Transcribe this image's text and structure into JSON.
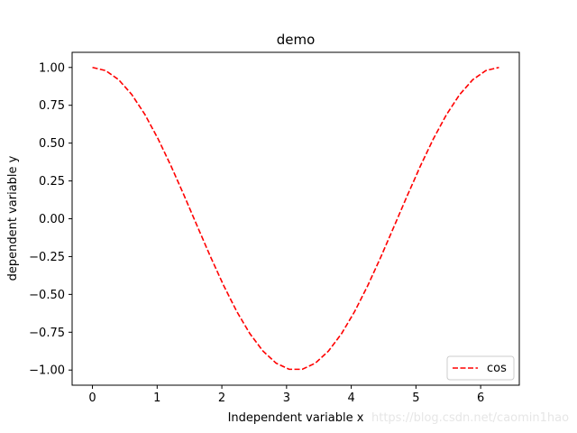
{
  "chart_data": {
    "type": "line",
    "title": "demo",
    "xlabel": "Independent variable x",
    "ylabel": "dependent variable y",
    "xlim": [
      -0.3142,
      6.5973
    ],
    "ylim": [
      -1.1,
      1.1
    ],
    "xticks": [
      0,
      1,
      2,
      3,
      4,
      5,
      6
    ],
    "xtick_labels": [
      "0",
      "1",
      "2",
      "3",
      "4",
      "5",
      "6"
    ],
    "yticks": [
      1.0,
      0.75,
      0.5,
      0.25,
      0.0,
      -0.25,
      -0.5,
      -0.75,
      -1.0
    ],
    "ytick_labels": [
      "1.00",
      "0.75",
      "0.50",
      "0.25",
      "0.00",
      "−0.25",
      "−0.50",
      "−0.75",
      "−1.00"
    ],
    "grid": false,
    "legend_position": "lower right",
    "series": [
      {
        "name": "cos",
        "color": "#ff0000",
        "line_style": "dashed",
        "x": [
          0,
          0.2027,
          0.4054,
          0.6081,
          0.8107,
          1.0134,
          1.2161,
          1.4188,
          1.6215,
          1.8242,
          2.0268,
          2.2295,
          2.4322,
          2.6349,
          2.8376,
          3.0403,
          3.2429,
          3.4456,
          3.6483,
          3.851,
          4.0537,
          4.2564,
          4.459,
          4.6617,
          4.8644,
          5.0671,
          5.2698,
          5.4725,
          5.6751,
          5.8778,
          6.0805,
          6.2832
        ],
        "y": [
          1.0,
          0.9795,
          0.919,
          0.8208,
          0.6889,
          0.5287,
          0.3473,
          0.1514,
          -0.0506,
          -0.2507,
          -0.4404,
          -0.6121,
          -0.7588,
          -0.8743,
          -0.9541,
          -0.9949,
          -0.9949,
          -0.9541,
          -0.8743,
          -0.7588,
          -0.6121,
          -0.4404,
          -0.2507,
          -0.0506,
          0.1514,
          0.3473,
          0.5287,
          0.6889,
          0.8208,
          0.919,
          0.9795,
          1.0
        ]
      }
    ]
  },
  "watermark": "https://blog.csdn.net/caomin1hao"
}
